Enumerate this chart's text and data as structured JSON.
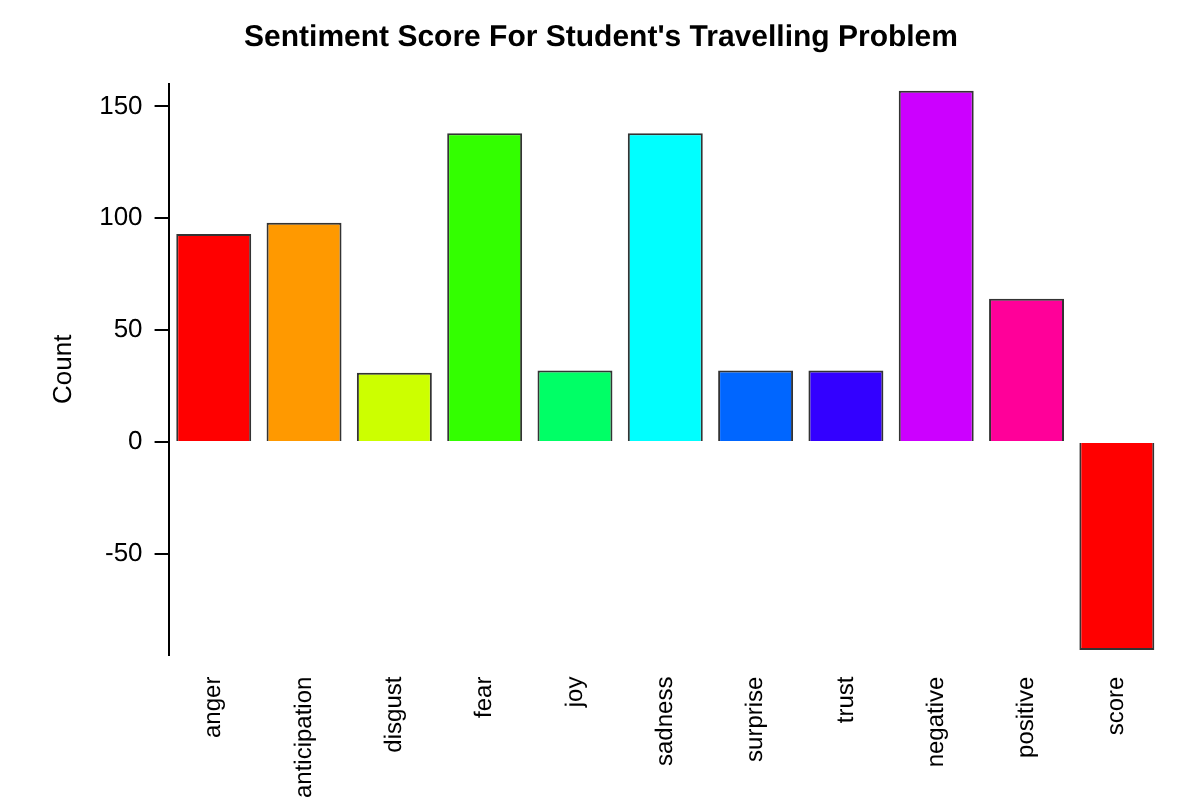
{
  "chart_data": {
    "type": "bar",
    "title": "Sentiment Score For Student's Travelling Problem",
    "ylabel": "Count",
    "categories": [
      "anger",
      "anticipation",
      "disgust",
      "fear",
      "joy",
      "sadness",
      "surprise",
      "trust",
      "negative",
      "positive",
      "score"
    ],
    "values": [
      93,
      98,
      31,
      138,
      32,
      138,
      32,
      32,
      157,
      64,
      -93
    ],
    "colors": [
      "#ff0000",
      "#ff9900",
      "#ccff00",
      "#33ff00",
      "#00ff66",
      "#00ffff",
      "#0066ff",
      "#3300ff",
      "#cc00ff",
      "#ff0099",
      "#ff0000"
    ],
    "ylim": [
      -95,
      160
    ],
    "yticks": [
      -50,
      0,
      50,
      100,
      150
    ],
    "grid": false,
    "legend": false
  }
}
